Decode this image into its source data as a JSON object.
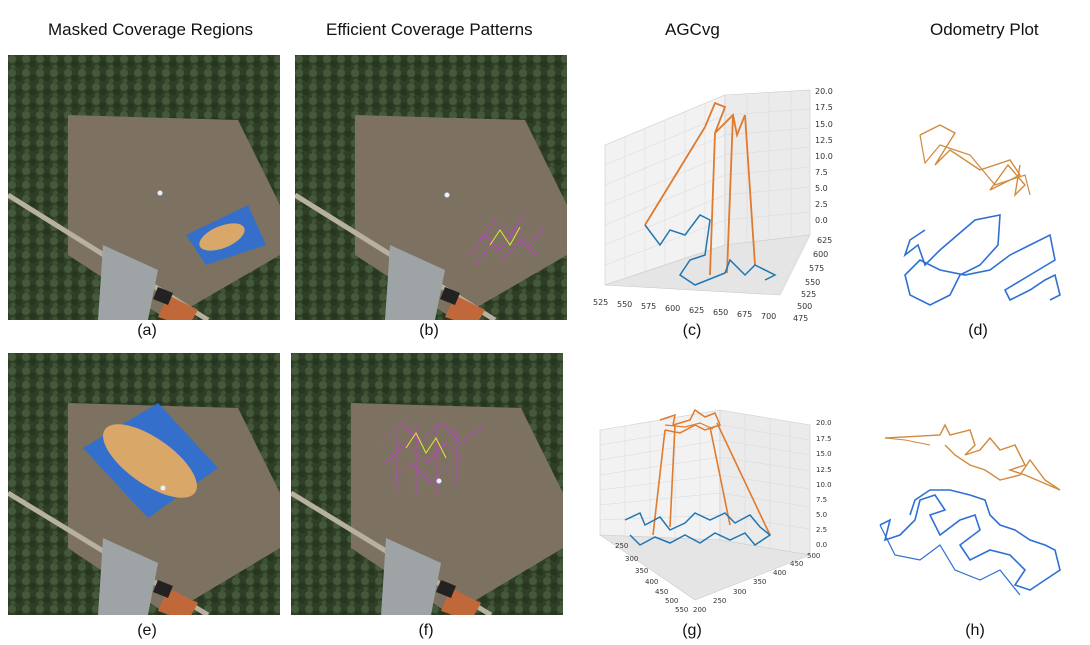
{
  "columns": {
    "masked": "Masked Coverage Regions",
    "efficient": "Efficient Coverage Patterns",
    "agcvg": "AGCvg",
    "odometry": "Odometry Plot"
  },
  "captions": {
    "a": "(a)",
    "b": "(b)",
    "c": "(c)",
    "d": "(d)",
    "e": "(e)",
    "f": "(f)",
    "g": "(g)",
    "h": "(h)"
  },
  "plot_c": {
    "z_ticks": [
      "20.0",
      "17.5",
      "15.0",
      "12.5",
      "10.0",
      "7.5",
      "5.0",
      "2.5",
      "0.0"
    ],
    "x_ticks": [
      "525",
      "550",
      "575",
      "600",
      "625",
      "650",
      "675",
      "700"
    ],
    "y_ticks": [
      "625",
      "600",
      "575",
      "550",
      "525",
      "500",
      "475"
    ]
  },
  "plot_g": {
    "z_ticks": [
      "20.0",
      "17.5",
      "15.0",
      "12.5",
      "10.0",
      "7.5",
      "5.0",
      "2.5",
      "0.0"
    ],
    "x_ticks": [
      "250",
      "300",
      "350",
      "400",
      "450",
      "500",
      "550"
    ],
    "y_ticks": [
      "200",
      "250",
      "300",
      "350",
      "400",
      "450",
      "500"
    ]
  },
  "colors": {
    "blue": "#1f77b4",
    "orange": "#e07a2e",
    "region_blue": "#2f6fd6",
    "region_tan": "#d9a868"
  }
}
